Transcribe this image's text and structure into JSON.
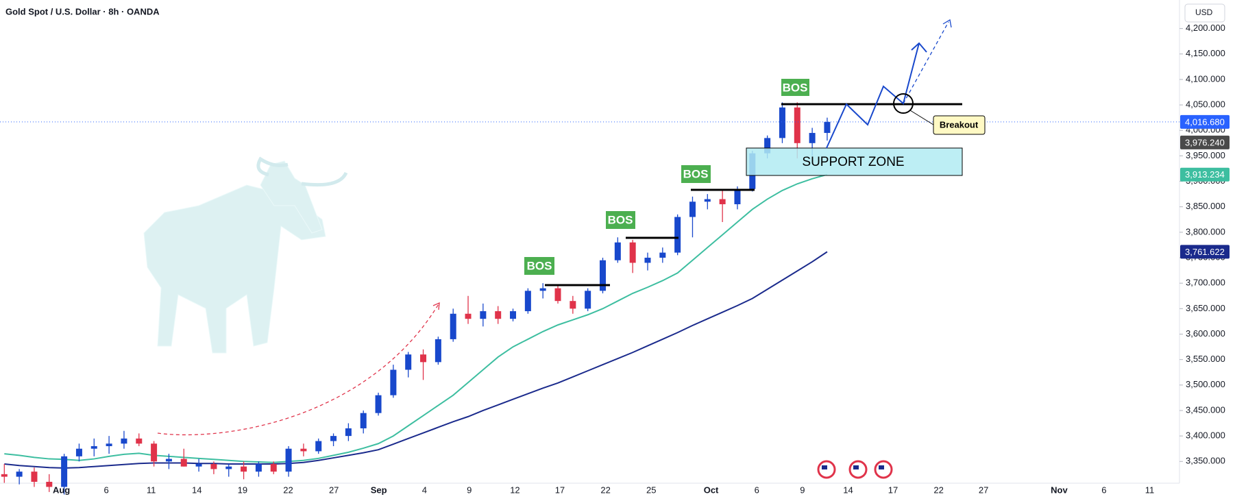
{
  "header": {
    "title": "Gold Spot / U.S. Dollar · 8h · OANDA",
    "currency": "USD"
  },
  "chart_data": {
    "type": "candlestick",
    "open": [
      3325,
      3320,
      3330,
      3310,
      3300,
      3360,
      3375,
      3380,
      3385,
      3395,
      3385,
      3350,
      3355,
      3340,
      3345,
      3335,
      3340,
      3330,
      3345,
      3330,
      3375,
      3370,
      3390,
      3400,
      3415,
      3445,
      3480,
      3530,
      3560,
      3545,
      3590,
      3640,
      3630,
      3645,
      3630,
      3645,
      3685,
      3690,
      3665,
      3650,
      3685,
      3745,
      3780,
      3740,
      3750,
      3760,
      3830,
      3860,
      3865,
      3855,
      3885,
      3955,
      3985,
      4045,
      3975,
      3995
    ],
    "high": [
      3345,
      3335,
      3338,
      3325,
      3365,
      3385,
      3395,
      3400,
      3410,
      3405,
      3390,
      3365,
      3375,
      3355,
      3350,
      3345,
      3350,
      3350,
      3350,
      3380,
      3385,
      3395,
      3405,
      3425,
      3450,
      3485,
      3540,
      3565,
      3570,
      3595,
      3650,
      3675,
      3660,
      3655,
      3650,
      3690,
      3700,
      3695,
      3675,
      3690,
      3750,
      3790,
      3785,
      3760,
      3770,
      3835,
      3870,
      3875,
      3885,
      3890,
      3960,
      3990,
      4055,
      4055,
      4005,
      4025
    ],
    "low": [
      3308,
      3305,
      3300,
      3290,
      3285,
      3350,
      3360,
      3365,
      3375,
      3380,
      3340,
      3335,
      3340,
      3330,
      3325,
      3320,
      3315,
      3320,
      3325,
      3320,
      3360,
      3365,
      3380,
      3390,
      3405,
      3440,
      3475,
      3515,
      3510,
      3540,
      3585,
      3620,
      3615,
      3620,
      3625,
      3640,
      3670,
      3660,
      3640,
      3645,
      3680,
      3740,
      3720,
      3725,
      3740,
      3755,
      3790,
      3845,
      3820,
      3845,
      3880,
      3945,
      3975,
      3945,
      3950,
      3980
    ],
    "close": [
      3320,
      3330,
      3310,
      3300,
      3360,
      3375,
      3380,
      3385,
      3395,
      3385,
      3350,
      3355,
      3340,
      3345,
      3335,
      3340,
      3330,
      3345,
      3330,
      3375,
      3370,
      3390,
      3400,
      3415,
      3445,
      3480,
      3530,
      3560,
      3545,
      3590,
      3640,
      3630,
      3645,
      3630,
      3645,
      3685,
      3690,
      3665,
      3650,
      3685,
      3745,
      3780,
      3740,
      3750,
      3760,
      3830,
      3860,
      3865,
      3855,
      3885,
      3955,
      3985,
      4045,
      3975,
      3995,
      4016.68
    ],
    "up_color": "#1848cc",
    "down_color": "#e0334a",
    "moving_averages": [
      {
        "color": "#3dbea0",
        "values": [
          3365,
          3362,
          3358,
          3355,
          3354,
          3352,
          3355,
          3360,
          3364,
          3366,
          3362,
          3360,
          3358,
          3356,
          3354,
          3352,
          3350,
          3349,
          3348,
          3350,
          3352,
          3356,
          3362,
          3368,
          3376,
          3385,
          3400,
          3420,
          3440,
          3460,
          3480,
          3505,
          3530,
          3555,
          3575,
          3590,
          3605,
          3618,
          3628,
          3638,
          3650,
          3665,
          3680,
          3692,
          3705,
          3720,
          3745,
          3770,
          3795,
          3820,
          3845,
          3865,
          3882,
          3895,
          3905,
          3913.234
        ]
      },
      {
        "color": "#1a2a8c",
        "values": [
          3345,
          3342,
          3340,
          3338,
          3337,
          3338,
          3340,
          3342,
          3344,
          3346,
          3347,
          3347,
          3347,
          3346,
          3346,
          3345,
          3345,
          3345,
          3345,
          3346,
          3348,
          3352,
          3357,
          3362,
          3367,
          3373,
          3384,
          3395,
          3406,
          3417,
          3428,
          3438,
          3450,
          3461,
          3472,
          3483,
          3494,
          3504,
          3516,
          3528,
          3540,
          3552,
          3564,
          3577,
          3590,
          3603,
          3617,
          3630,
          3643,
          3656,
          3670,
          3688,
          3706,
          3724,
          3742,
          3761.622
        ]
      }
    ],
    "ylim": [
      3310,
      4256
    ],
    "yticks": [
      {
        "value": 3350,
        "label": "3,350.000"
      },
      {
        "value": 3400,
        "label": "3,400.000"
      },
      {
        "value": 3450,
        "label": "3,450.000"
      },
      {
        "value": 3500,
        "label": "3,500.000"
      },
      {
        "value": 3550,
        "label": "3,550.000"
      },
      {
        "value": 3600,
        "label": "3,600.000"
      },
      {
        "value": 3650,
        "label": "3,650.000"
      },
      {
        "value": 3700,
        "label": "3,700.000"
      },
      {
        "value": 3750,
        "label": "3,750.000"
      },
      {
        "value": 3800,
        "label": "3,800.000"
      },
      {
        "value": 3850,
        "label": "3,850.000"
      },
      {
        "value": 3900,
        "label": "3,900.000"
      },
      {
        "value": 3950,
        "label": "3,950.000"
      },
      {
        "value": 4000,
        "label": "4,000.000"
      },
      {
        "value": 4050,
        "label": "4,050.000"
      },
      {
        "value": 4100,
        "label": "4,100.000"
      },
      {
        "value": 4150,
        "label": "4,150.000"
      },
      {
        "value": 4200,
        "label": "4,200.000"
      }
    ],
    "price_labels": [
      {
        "value": 4016.68,
        "label": "4,016.680",
        "color": "#2962ff"
      },
      {
        "value": 3976.24,
        "label": "3,976.240",
        "color": "#4a4a4a"
      },
      {
        "value": 3913.234,
        "label": "3,913.234",
        "color": "#3dbea0"
      },
      {
        "value": 3761.622,
        "label": "3,761.622",
        "color": "#1a2a8c"
      }
    ],
    "xticks": [
      "Aug",
      "6",
      "11",
      "14",
      "19",
      "22",
      "27",
      "Sep",
      "4",
      "9",
      "12",
      "17",
      "22",
      "25",
      "Oct",
      "6",
      "9",
      "14",
      "17",
      "22",
      "27",
      "Nov",
      "6",
      "11"
    ],
    "annotations": {
      "bos": [
        "BOS",
        "BOS",
        "BOS",
        "BOS"
      ],
      "support_zone": "SUPPORT ZONE",
      "breakout": "Breakout"
    }
  }
}
